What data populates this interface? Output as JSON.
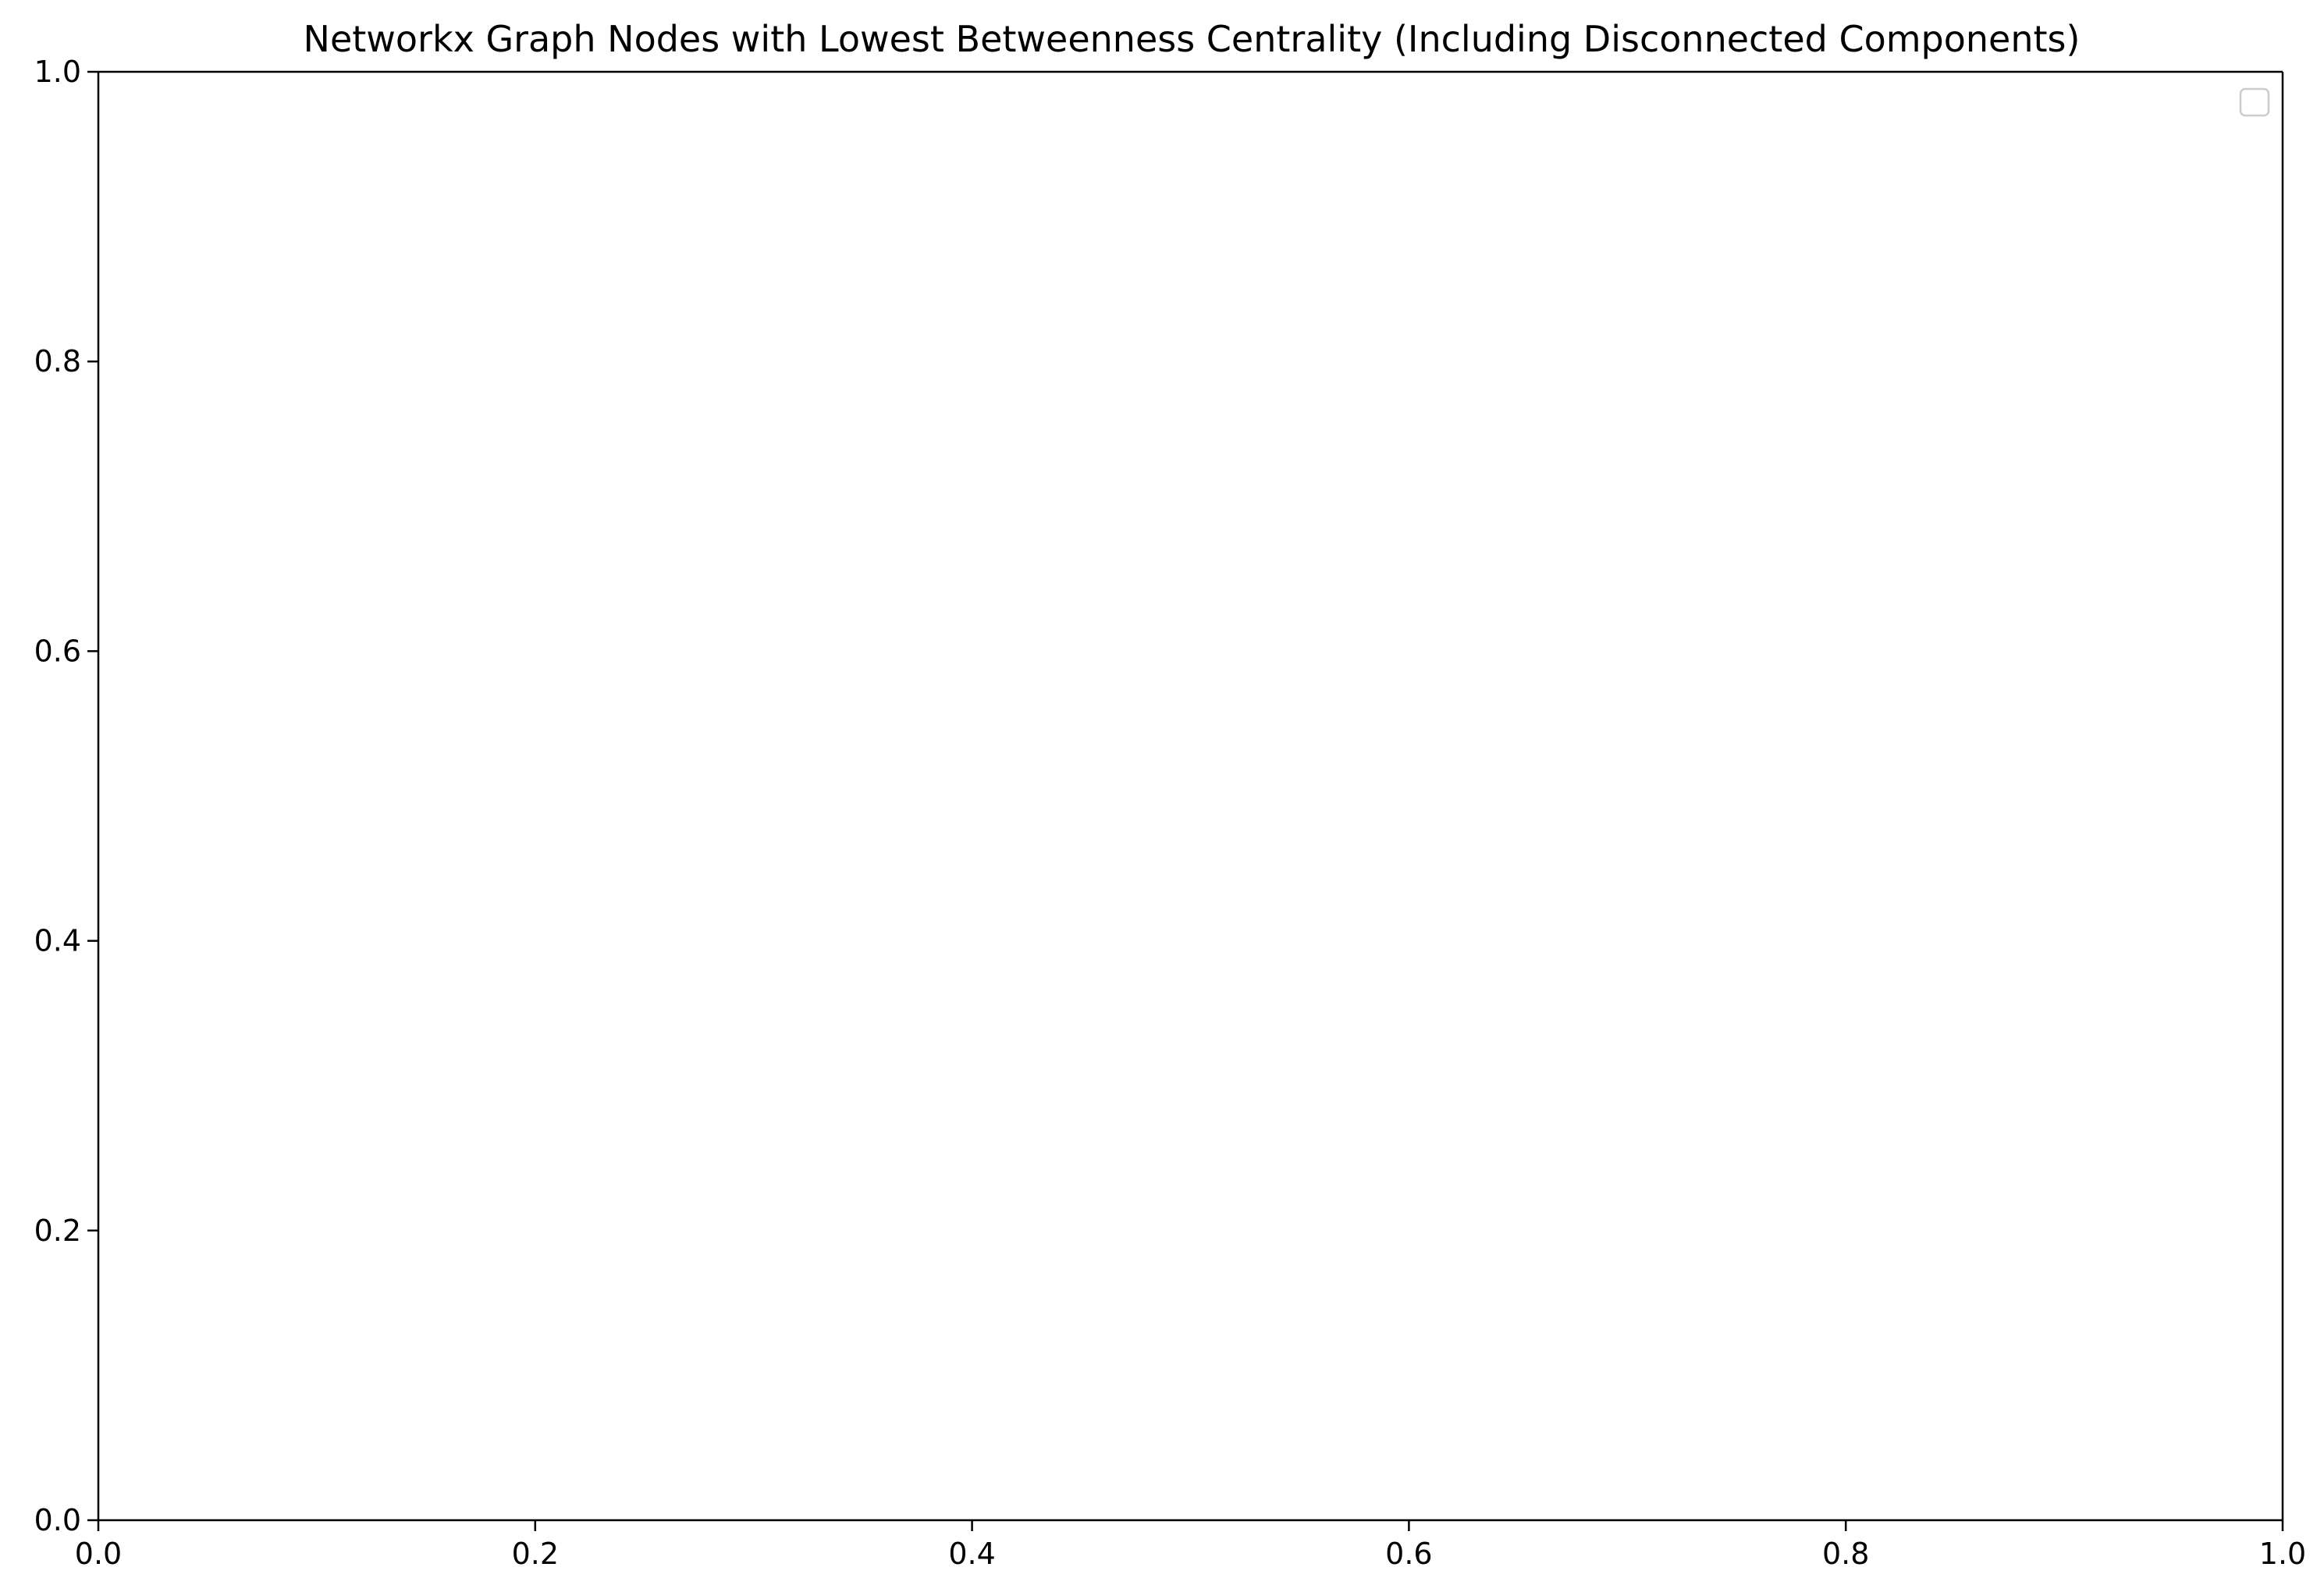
{
  "chart_data": {
    "type": "scatter",
    "title": "Networkx Graph Nodes with Lowest Betweenness Centrality (Including Disconnected Components)",
    "xlabel": "",
    "ylabel": "",
    "xlim": [
      0.0,
      1.0
    ],
    "ylim": [
      0.0,
      1.0
    ],
    "x_ticks": [
      "0.0",
      "0.2",
      "0.4",
      "0.6",
      "0.8",
      "1.0"
    ],
    "y_ticks": [
      "0.0",
      "0.2",
      "0.4",
      "0.6",
      "0.8",
      "1.0"
    ],
    "series": [],
    "grid": false,
    "legend": {
      "placement": "upper right",
      "entries": []
    }
  }
}
